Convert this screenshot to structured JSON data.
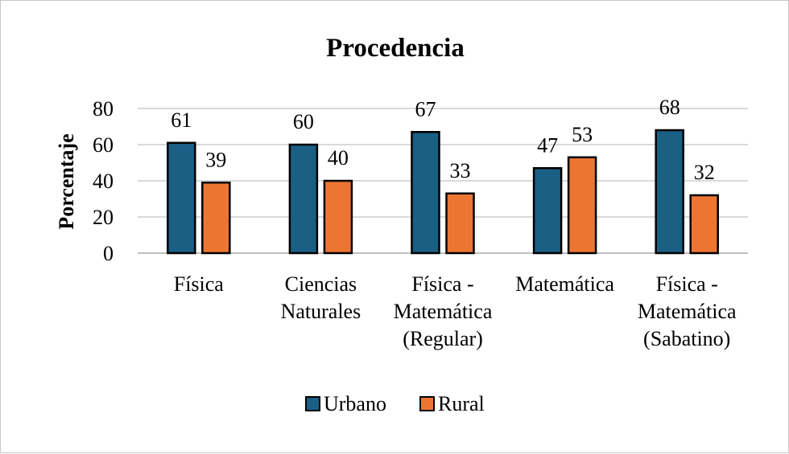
{
  "chart_data": {
    "type": "bar",
    "title": "Procedencia",
    "xlabel": "",
    "ylabel": "Porcentaje",
    "ylim": [
      0,
      80
    ],
    "yticks": [
      0,
      20,
      40,
      60,
      80
    ],
    "grid": true,
    "legend_position": "bottom",
    "categories": [
      [
        "Física"
      ],
      [
        "Ciencias",
        "Naturales"
      ],
      [
        "Física -",
        "Matemática",
        "(Regular)"
      ],
      [
        "Matemática"
      ],
      [
        "Física -",
        "Matemática",
        "(Sabatino)"
      ]
    ],
    "series": [
      {
        "name": "Urbano",
        "color": "#1a5f84",
        "values": [
          61,
          60,
          67,
          47,
          68
        ]
      },
      {
        "name": "Rural",
        "color": "#ed7534",
        "values": [
          39,
          40,
          33,
          53,
          32
        ]
      }
    ]
  }
}
